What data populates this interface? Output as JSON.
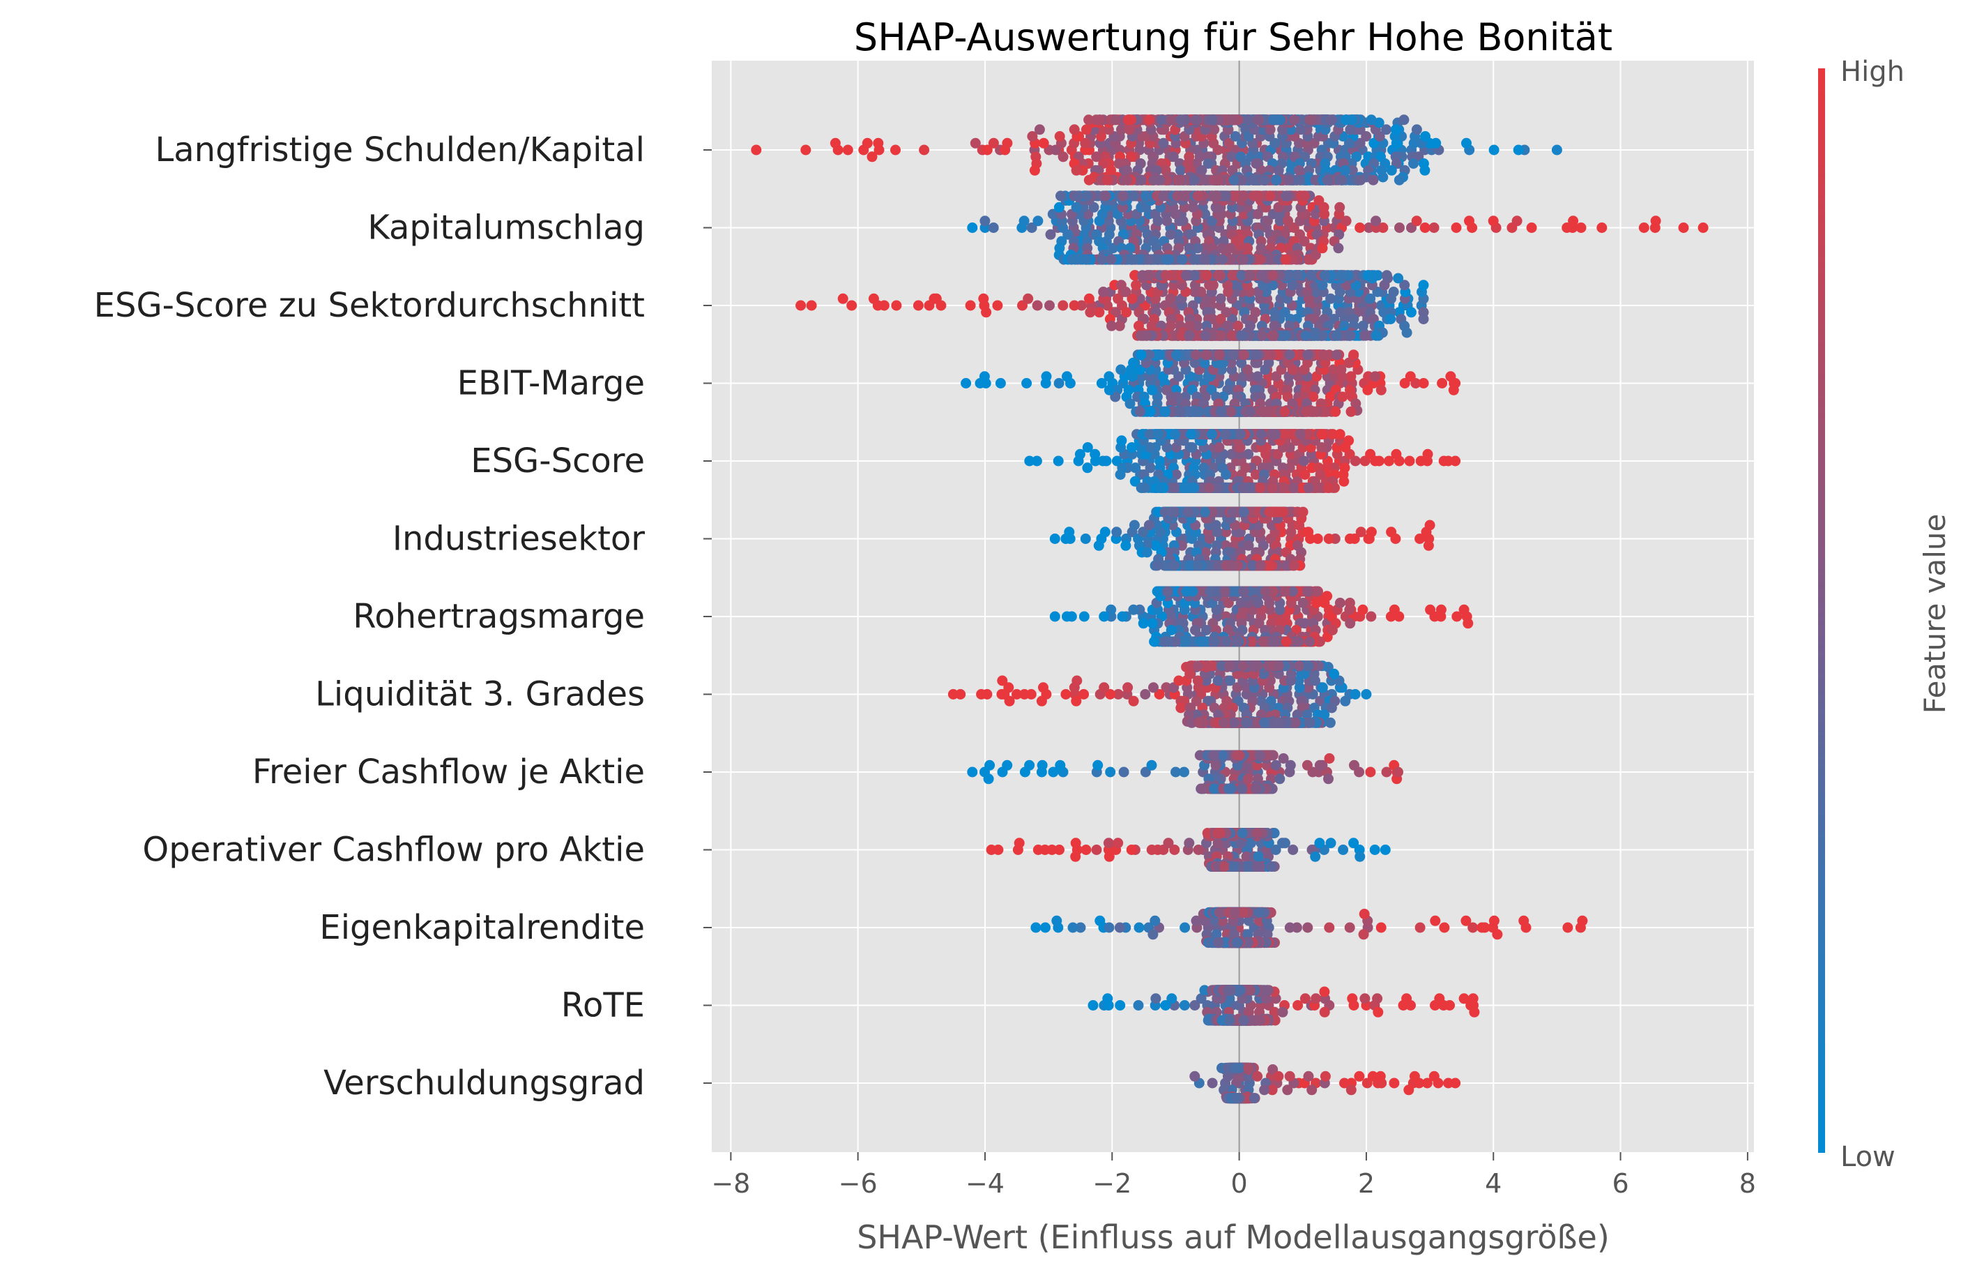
{
  "chart_data": {
    "type": "scatter",
    "subtype": "shap-beeswarm",
    "title": "SHAP-Auswertung für Sehr Hohe Bonität",
    "xlabel": "SHAP-Wert (Einfluss auf Modellausgangsgröße)",
    "xlim": [
      -8.3,
      8.1
    ],
    "xticks": [
      -8,
      -6,
      -4,
      -2,
      0,
      2,
      4,
      6,
      8
    ],
    "xtick_labels": [
      "−8",
      "−6",
      "−4",
      "−2",
      "0",
      "2",
      "4",
      "6",
      "8"
    ],
    "grid": true,
    "colorbar": {
      "label": "Feature value",
      "high_label": "High",
      "low_label": "Low",
      "high_color": "#e8383d",
      "low_color": "#008bd4"
    },
    "features": [
      {
        "name": "Langfristige Schulden/Kapital",
        "min": -7.6,
        "max": 5.0,
        "center": 0.0,
        "spread": 2.2,
        "width": 0.9,
        "corr": -1
      },
      {
        "name": "Kapitalumschlag",
        "min": -4.2,
        "max": 7.3,
        "center": -0.7,
        "spread": 1.8,
        "width": 0.95,
        "corr": 1
      },
      {
        "name": "ESG-Score zu Sektordurchschnitt",
        "min": -6.9,
        "max": 2.9,
        "center": 0.3,
        "spread": 1.8,
        "width": 0.9,
        "corr": -1
      },
      {
        "name": "EBIT-Marge",
        "min": -4.3,
        "max": 3.4,
        "center": 0.0,
        "spread": 1.4,
        "width": 0.85,
        "corr": 1
      },
      {
        "name": "ESG-Score",
        "min": -3.3,
        "max": 3.4,
        "center": 0.0,
        "spread": 1.3,
        "width": 0.8,
        "corr": 1
      },
      {
        "name": "Industriesektor",
        "min": -2.9,
        "max": 3.0,
        "center": -0.2,
        "spread": 0.9,
        "width": 0.8,
        "corr": 1
      },
      {
        "name": "Rohertragsmarge",
        "min": -2.9,
        "max": 3.6,
        "center": 0.0,
        "spread": 1.1,
        "width": 0.75,
        "corr": 1
      },
      {
        "name": "Liquidität 3. Grades",
        "min": -4.5,
        "max": 2.0,
        "center": 0.3,
        "spread": 0.9,
        "width": 0.85,
        "corr": -1
      },
      {
        "name": "Freier Cashflow je Aktie",
        "min": -4.2,
        "max": 2.5,
        "center": 0.0,
        "spread": 0.4,
        "width": 0.5,
        "corr": 1
      },
      {
        "name": "Operativer Cashflow pro Aktie",
        "min": -3.9,
        "max": 2.3,
        "center": 0.0,
        "spread": 0.35,
        "width": 0.5,
        "corr": -1
      },
      {
        "name": "Eigenkapitalrendite",
        "min": -3.2,
        "max": 5.4,
        "center": 0.0,
        "spread": 0.35,
        "width": 0.45,
        "corr": 1
      },
      {
        "name": "RoTE",
        "min": -2.3,
        "max": 3.7,
        "center": 0.0,
        "spread": 0.35,
        "width": 0.45,
        "corr": 1
      },
      {
        "name": "Verschuldungsgrad",
        "min": -0.7,
        "max": 3.4,
        "center": 0.0,
        "spread": 0.15,
        "width": 0.45,
        "corr": 1
      }
    ]
  }
}
